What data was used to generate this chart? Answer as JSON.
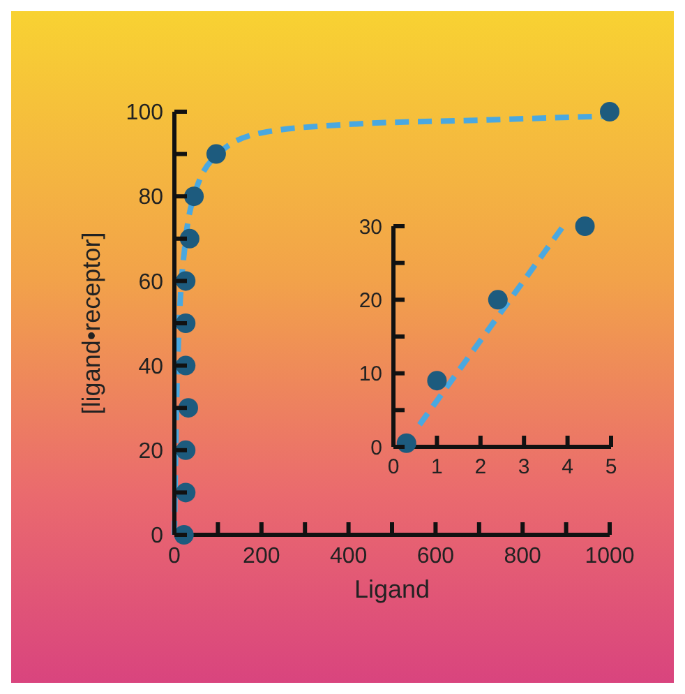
{
  "chart_data": [
    {
      "type": "scatter",
      "xlabel": "Ligand",
      "ylabel": "[ligand•receptor]",
      "xlim": [
        0,
        1000
      ],
      "ylim": [
        0,
        100
      ],
      "xticks": [
        0,
        {
          "value": 100,
          "label": null
        },
        200,
        {
          "value": 300,
          "label": null
        },
        400,
        {
          "value": 500,
          "label": null
        },
        600,
        {
          "value": 700,
          "label": null
        },
        800,
        {
          "value": 900,
          "label": null
        },
        1000
      ],
      "yticks": [
        0,
        {
          "value": 10,
          "label": null
        },
        20,
        {
          "value": 30,
          "label": null
        },
        40,
        {
          "value": 50,
          "label": null
        },
        60,
        {
          "value": 70,
          "label": null
        },
        80,
        {
          "value": 90,
          "label": null
        },
        100
      ],
      "grid": false,
      "marker": "circle",
      "series": [
        {
          "color": "#1d5b7e",
          "x": [
            22,
            26,
            26,
            32,
            26,
            26,
            26,
            35,
            45,
            96,
            1000
          ],
          "values": [
            0,
            10,
            20,
            30,
            40,
            50,
            60,
            70,
            80,
            90,
            100
          ]
        },
        {
          "type": "line",
          "color": "#4aa8e0",
          "marker": "none",
          "line_style": "dashed",
          "x": [
            0,
            5,
            11,
            25,
            45,
            100,
            200,
            400,
            700,
            1000
          ],
          "values": [
            0,
            31,
            50,
            69,
            80,
            90,
            95,
            97,
            98,
            99
          ]
        }
      ]
    },
    {
      "type": "scatter",
      "xlim": [
        0,
        5
      ],
      "ylim": [
        0,
        30
      ],
      "xticks": [
        0,
        1,
        2,
        3,
        4,
        5
      ],
      "yticks": [
        0,
        {
          "value": 5,
          "label": null
        },
        10,
        {
          "value": 15,
          "label": null
        },
        20,
        {
          "value": 25,
          "label": null
        },
        30
      ],
      "grid": false,
      "marker": "circle",
      "series": [
        {
          "color": "#1d5b7e",
          "x": [
            0.3,
            1,
            2.4,
            4.4
          ],
          "values": [
            0.5,
            9,
            20,
            30
          ]
        },
        {
          "type": "line",
          "color": "#4aa8e0",
          "marker": "none",
          "line_style": "dashed",
          "x": [
            0.6,
            3.9
          ],
          "values": [
            3,
            30
          ]
        }
      ]
    }
  ]
}
